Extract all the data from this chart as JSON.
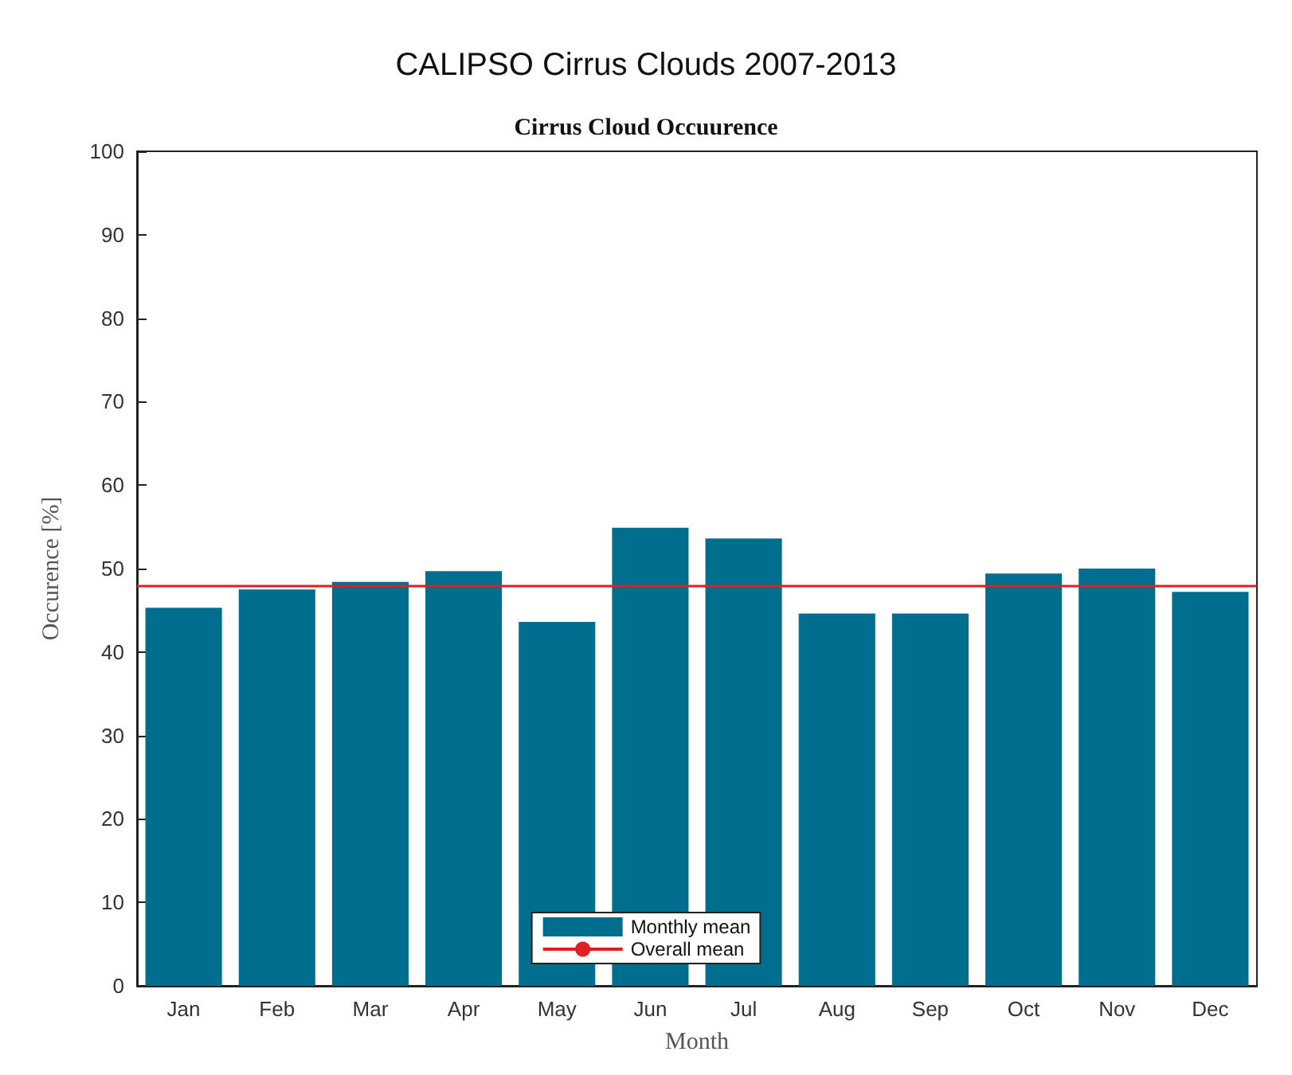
{
  "chart_data": {
    "type": "bar",
    "title": "CALIPSO Cirrus Clouds 2007-2013",
    "subtitle": "Cirrus Cloud Occuurence",
    "xlabel": "Month",
    "ylabel": "Occurence [%]",
    "categories": [
      "Jan",
      "Feb",
      "Mar",
      "Apr",
      "May",
      "Jun",
      "Jul",
      "Aug",
      "Sep",
      "Oct",
      "Nov",
      "Dec"
    ],
    "series": [
      {
        "name": "Monthly mean",
        "color": "#006e8f",
        "values": [
          45.3,
          47.5,
          48.4,
          49.7,
          43.6,
          54.9,
          53.6,
          44.6,
          44.6,
          49.4,
          50.0,
          47.2
        ]
      }
    ],
    "ref_lines": [
      {
        "axis": "y",
        "value": 48.0,
        "label": "Overall mean",
        "color": "#e02020"
      }
    ],
    "ylim": [
      0,
      100
    ],
    "yticks": [
      0,
      10,
      20,
      30,
      40,
      50,
      60,
      70,
      80,
      90,
      100
    ],
    "grid": false,
    "legend": "bottom"
  }
}
